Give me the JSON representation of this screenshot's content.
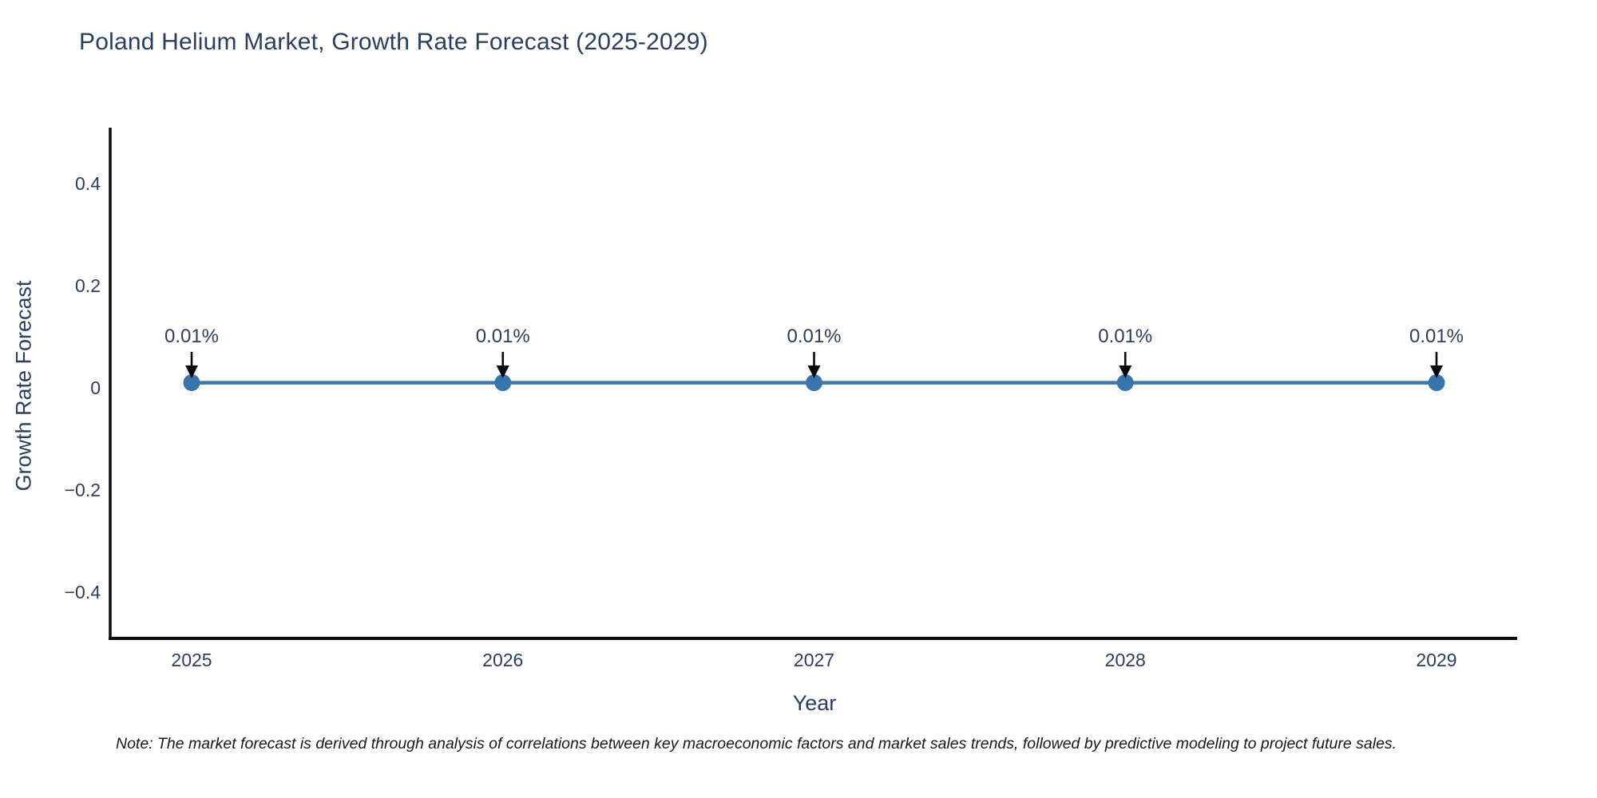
{
  "title": "Poland Helium Market, Growth Rate Forecast (2025-2029)",
  "note": "Note: The market forecast is derived through analysis of correlations between key macroeconomic factors and market sales trends, followed by predictive modeling to project future sales.",
  "colors": {
    "line": "#3f77ad",
    "marker": "#3a74ad",
    "axis_line": "#0b0b14",
    "tick_text": "#2a3f5f",
    "annotation_text": "#2a3f5f",
    "annotation_arrow": "#07070d",
    "background": "#ffffff"
  },
  "chart_data": {
    "type": "line",
    "title": "Poland Helium Market, Growth Rate Forecast (2025-2029)",
    "xlabel": "Year",
    "ylabel": "Growth Rate Forecast",
    "x": [
      2025,
      2026,
      2027,
      2028,
      2029
    ],
    "series": [
      {
        "name": "Growth Rate Forecast",
        "values": [
          0.01,
          0.01,
          0.01,
          0.01,
          0.01
        ]
      }
    ],
    "point_labels": [
      "0.01%",
      "0.01%",
      "0.01%",
      "0.01%",
      "0.01%"
    ],
    "xticks": [
      "2025",
      "2026",
      "2027",
      "2028",
      "2029"
    ],
    "yticks": {
      "values": [
        0.4,
        0.2,
        0,
        -0.2,
        -0.4
      ],
      "labels": [
        "0.4",
        "0.2",
        "0",
        "−0.2",
        "−0.4"
      ]
    },
    "ylim": [
      -0.49,
      0.51
    ],
    "grid": false,
    "legend": false,
    "marker_style": "circle",
    "annotation_arrows": "down"
  }
}
